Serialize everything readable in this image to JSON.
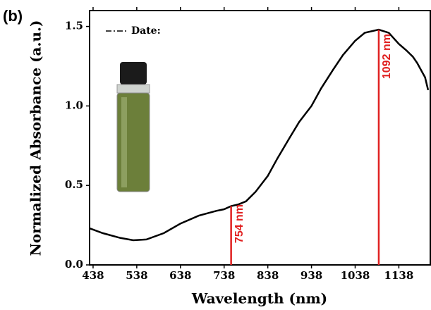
{
  "chart_data": {
    "type": "line",
    "panel_label": "(b)",
    "x_label": "Wavelength (nm)",
    "y_label": "Normalized Absorbance (a.u.)",
    "x": [
      430,
      460,
      500,
      530,
      560,
      600,
      638,
      680,
      720,
      738,
      754,
      770,
      788,
      810,
      838,
      860,
      888,
      910,
      938,
      960,
      988,
      1010,
      1038,
      1060,
      1092,
      1115,
      1138,
      1155,
      1170,
      1180,
      1190,
      1198,
      1205
    ],
    "series": [
      {
        "name": "Date:",
        "color": "#000000",
        "values": [
          0.23,
          0.2,
          0.17,
          0.155,
          0.16,
          0.2,
          0.26,
          0.31,
          0.34,
          0.35,
          0.37,
          0.38,
          0.4,
          0.46,
          0.56,
          0.67,
          0.8,
          0.9,
          1.0,
          1.11,
          1.23,
          1.32,
          1.41,
          1.46,
          1.48,
          1.46,
          1.39,
          1.35,
          1.31,
          1.27,
          1.22,
          1.18,
          1.1
        ]
      }
    ],
    "peaks": [
      {
        "x": 754,
        "y": 0.37,
        "label": "754 nm",
        "color": "#e02020"
      },
      {
        "x": 1092,
        "y": 1.48,
        "label": "1092 nm",
        "color": "#e02020"
      }
    ],
    "xlim": [
      430,
      1210
    ],
    "ylim": [
      0,
      1.6
    ],
    "xticks": [
      438,
      538,
      638,
      738,
      838,
      938,
      1038,
      1138
    ],
    "yticks": [
      {
        "value": 0,
        "label": "0.0"
      },
      0.5,
      {
        "value": 1,
        "label": "1.0"
      },
      1.5
    ]
  }
}
